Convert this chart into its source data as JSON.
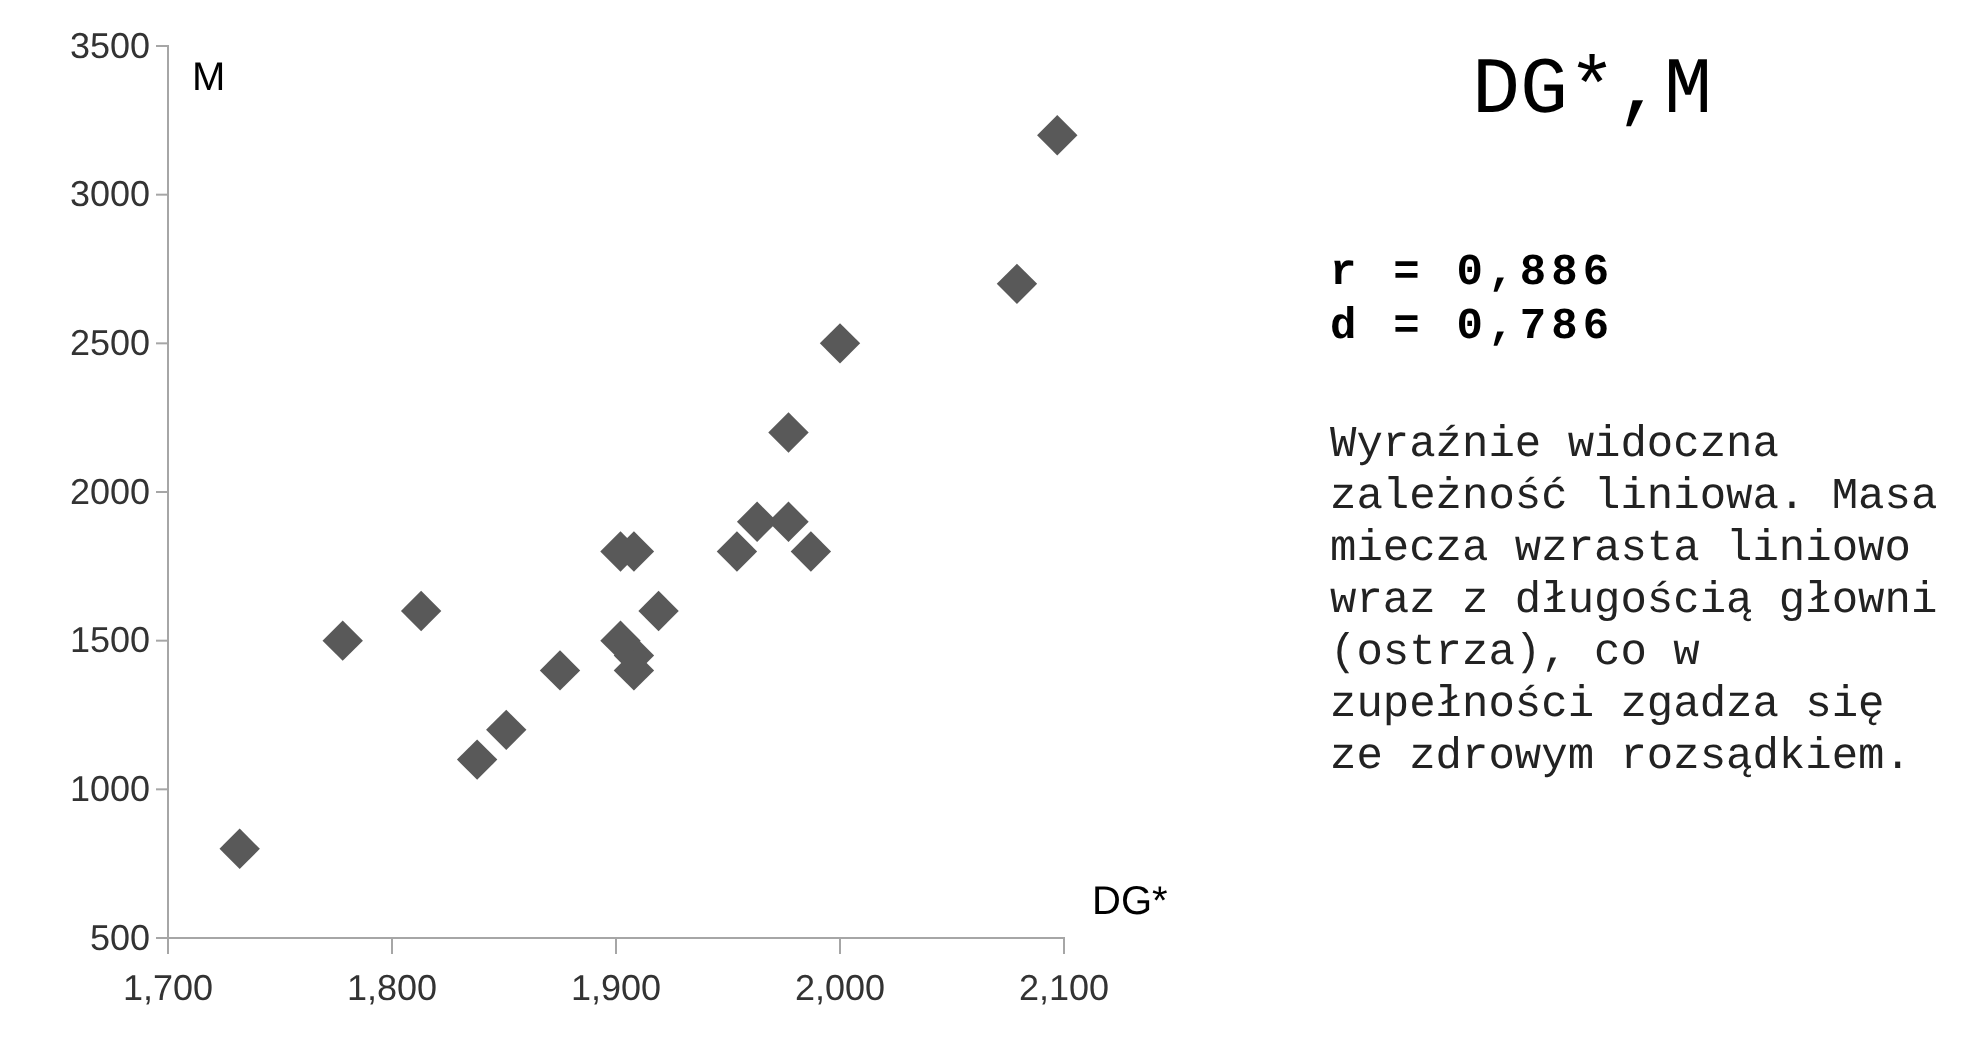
{
  "chart_data": {
    "type": "scatter",
    "title": "DG*,M",
    "xlabel": "DG*",
    "ylabel": "M",
    "x": [
      1.732,
      1.778,
      1.813,
      1.838,
      1.851,
      1.875,
      1.902,
      1.908,
      1.902,
      1.908,
      1.908,
      1.919,
      1.954,
      1.963,
      1.977,
      1.977,
      1.987,
      2.0,
      2.079,
      2.097
    ],
    "series": [
      {
        "color": "#595959",
        "values": [
          800,
          1500,
          1600,
          1100,
          1200,
          1400,
          1800,
          1800,
          1500,
          1450,
          1400,
          1600,
          1800,
          1900,
          1900,
          2200,
          1800,
          2500,
          2700,
          3200
        ]
      }
    ],
    "marker": "diamond",
    "xlim": [
      1.7,
      2.1
    ],
    "xticks": [
      {
        "value": 1.7,
        "label": "1,700"
      },
      {
        "value": 1.8,
        "label": "1,800"
      },
      {
        "value": 1.9,
        "label": "1,900"
      },
      {
        "value": 2.0,
        "label": "2,000"
      },
      {
        "value": 2.1,
        "label": "2,100"
      }
    ],
    "ylim": [
      500,
      3500
    ],
    "yticks": [
      500,
      1000,
      1500,
      2000,
      2500,
      3000,
      3500
    ],
    "annotations": [
      "r = 0,886",
      "d = 0,786",
      "Wyraźnie widoczna zależność liniowa. Masa miecza wzrasta liniowo wraz z długością głowni (ostrza), co w zupełności zgadza się ze zdrowym rozsądkiem."
    ]
  }
}
